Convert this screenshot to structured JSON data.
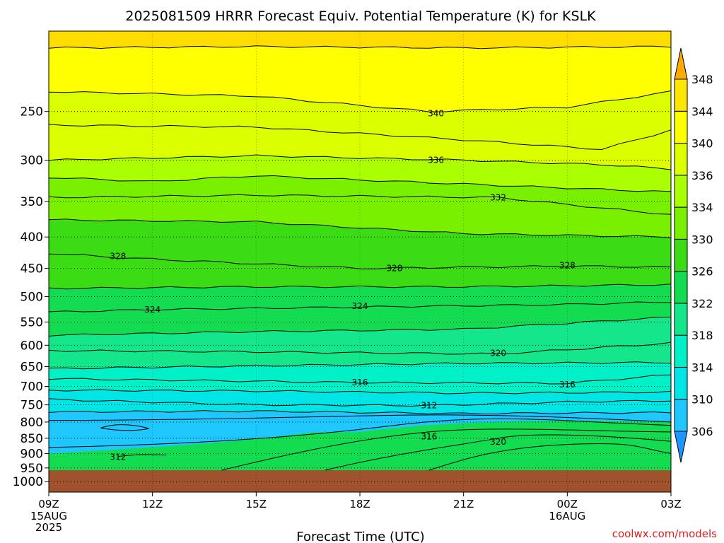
{
  "chart_data": {
    "type": "contour",
    "title": "2025081509 HRRR Forecast Equiv. Potential Temperature (K) for KSLK",
    "xlabel": "Forecast Time (UTC)",
    "ylabel": "",
    "watermark": "coolwx.com/models",
    "x_hours": [
      0,
      27
    ],
    "x_ticks": [
      {
        "h": 0,
        "label": "09Z",
        "sub1": "15AUG",
        "sub2": "2025"
      },
      {
        "h": 3,
        "label": "12Z",
        "sub1": "",
        "sub2": ""
      },
      {
        "h": 6,
        "label": "15Z",
        "sub1": "",
        "sub2": ""
      },
      {
        "h": 9,
        "label": "18Z",
        "sub1": "",
        "sub2": ""
      },
      {
        "h": 12,
        "label": "21Z",
        "sub1": "",
        "sub2": ""
      },
      {
        "h": 15,
        "label": "00Z",
        "sub1": "16AUG",
        "sub2": ""
      },
      {
        "h": 18,
        "label": "03Z",
        "sub1": "",
        "sub2": ""
      }
    ],
    "x_range": [
      0,
      18
    ],
    "y_scale": "log-pressure",
    "y_range_hpa": [
      1040,
      185
    ],
    "y_ticks": [
      250,
      300,
      350,
      400,
      450,
      500,
      550,
      600,
      650,
      700,
      750,
      800,
      850,
      900,
      950,
      1000
    ],
    "surface_pressure_hpa": 958,
    "grid": true,
    "colorbar": {
      "levels": [
        306,
        310,
        314,
        318,
        322,
        326,
        330,
        334,
        336,
        340,
        344,
        348
      ],
      "colors": [
        "#1ec8ff",
        "#00e6e6",
        "#00f0c8",
        "#14e68c",
        "#14dc50",
        "#3cdc14",
        "#78f000",
        "#aaff00",
        "#dcff00",
        "#ffff00",
        "#ffe600",
        "#ffc800"
      ],
      "below_color": "#1e96ff",
      "above_color": "#ffaa00",
      "orientation": "vertical",
      "position": "right"
    },
    "contours": [
      {
        "level": 342,
        "p_at_times": [
          [
            0,
            197
          ],
          [
            6,
            196
          ],
          [
            12,
            197
          ],
          [
            18,
            196
          ]
        ],
        "label": ""
      },
      {
        "level": 340,
        "p_at_times": [
          [
            0,
            232
          ],
          [
            6,
            236
          ],
          [
            11,
            250
          ],
          [
            15,
            246
          ],
          [
            18,
            232
          ]
        ],
        "label": "340"
      },
      {
        "level": 338,
        "p_at_times": [
          [
            0,
            263
          ],
          [
            6,
            265
          ],
          [
            12,
            278
          ],
          [
            16,
            288
          ],
          [
            18,
            268
          ]
        ],
        "label": ""
      },
      {
        "level": 336,
        "p_at_times": [
          [
            0,
            300
          ],
          [
            6,
            295
          ],
          [
            12,
            300
          ],
          [
            16,
            305
          ],
          [
            18,
            310
          ]
        ],
        "label": "336"
      },
      {
        "level": 334,
        "p_at_times": [
          [
            0,
            320
          ],
          [
            3,
            325
          ],
          [
            6,
            318
          ],
          [
            12,
            328
          ],
          [
            18,
            338
          ]
        ],
        "label": ""
      },
      {
        "level": 332,
        "p_at_times": [
          [
            0,
            345
          ],
          [
            6,
            342
          ],
          [
            13,
            345
          ],
          [
            18,
            368
          ]
        ],
        "label": "332"
      },
      {
        "level": 330,
        "p_at_times": [
          [
            0,
            375
          ],
          [
            6,
            378
          ],
          [
            12,
            395
          ],
          [
            18,
            400
          ]
        ],
        "label": ""
      },
      {
        "level": 328,
        "p_at_times": [
          [
            0,
            425
          ],
          [
            2,
            432
          ],
          [
            9,
            450
          ],
          [
            15,
            446
          ],
          [
            18,
            448
          ]
        ],
        "label": "328"
      },
      {
        "level": 326,
        "p_at_times": [
          [
            0,
            485
          ],
          [
            6,
            482
          ],
          [
            12,
            482
          ],
          [
            18,
            478
          ]
        ],
        "label": ""
      },
      {
        "level": 324,
        "p_at_times": [
          [
            0,
            530
          ],
          [
            3,
            525
          ],
          [
            9,
            520
          ],
          [
            15,
            515
          ],
          [
            18,
            510
          ]
        ],
        "label": "324"
      },
      {
        "level": 322,
        "p_at_times": [
          [
            0,
            578
          ],
          [
            6,
            570
          ],
          [
            12,
            565
          ],
          [
            18,
            540
          ]
        ],
        "label": ""
      },
      {
        "level": 320,
        "p_at_times": [
          [
            0,
            612
          ],
          [
            6,
            615
          ],
          [
            13,
            620
          ],
          [
            18,
            595
          ]
        ],
        "label": "320"
      },
      {
        "level": 318,
        "p_at_times": [
          [
            0,
            655
          ],
          [
            6,
            648
          ],
          [
            12,
            642
          ],
          [
            18,
            640
          ]
        ],
        "label": ""
      },
      {
        "level": 316,
        "p_at_times": [
          [
            0,
            680
          ],
          [
            9,
            690
          ],
          [
            15,
            692
          ],
          [
            18,
            670
          ]
        ],
        "label": "316"
      },
      {
        "level": 314,
        "p_at_times": [
          [
            0,
            710
          ],
          [
            6,
            712
          ],
          [
            12,
            718
          ],
          [
            18,
            715
          ]
        ],
        "label": ""
      },
      {
        "level": 312,
        "p_at_times": [
          [
            0,
            735
          ],
          [
            6,
            750
          ],
          [
            11,
            752
          ],
          [
            15,
            742
          ],
          [
            18,
            738
          ]
        ],
        "label": "312"
      },
      {
        "level": 310,
        "p_at_times": [
          [
            0,
            770
          ],
          [
            6,
            768
          ],
          [
            12,
            775
          ],
          [
            18,
            772
          ]
        ],
        "label": ""
      }
    ],
    "contour_labels": [
      {
        "text": "340",
        "h": 11.2,
        "p": 252
      },
      {
        "text": "336",
        "h": 11.2,
        "p": 300
      },
      {
        "text": "332",
        "h": 13.0,
        "p": 345
      },
      {
        "text": "328",
        "h": 2.0,
        "p": 430
      },
      {
        "text": "328",
        "h": 10.0,
        "p": 450
      },
      {
        "text": "328",
        "h": 15.0,
        "p": 445
      },
      {
        "text": "324",
        "h": 3.0,
        "p": 525
      },
      {
        "text": "324",
        "h": 9.0,
        "p": 518
      },
      {
        "text": "320",
        "h": 13.0,
        "p": 618
      },
      {
        "text": "316",
        "h": 9.0,
        "p": 690
      },
      {
        "text": "316",
        "h": 15.0,
        "p": 695
      },
      {
        "text": "312",
        "h": 11.0,
        "p": 752
      },
      {
        "text": "316",
        "h": 11.0,
        "p": 845
      },
      {
        "text": "320",
        "h": 13.0,
        "p": 862
      },
      {
        "text": "312",
        "h": 2.0,
        "p": 912
      }
    ],
    "low_level_cool_pool": {
      "min_value": 306,
      "p_top": 770,
      "p_bottom": 958,
      "h_start": 0,
      "h_end": 18
    }
  }
}
